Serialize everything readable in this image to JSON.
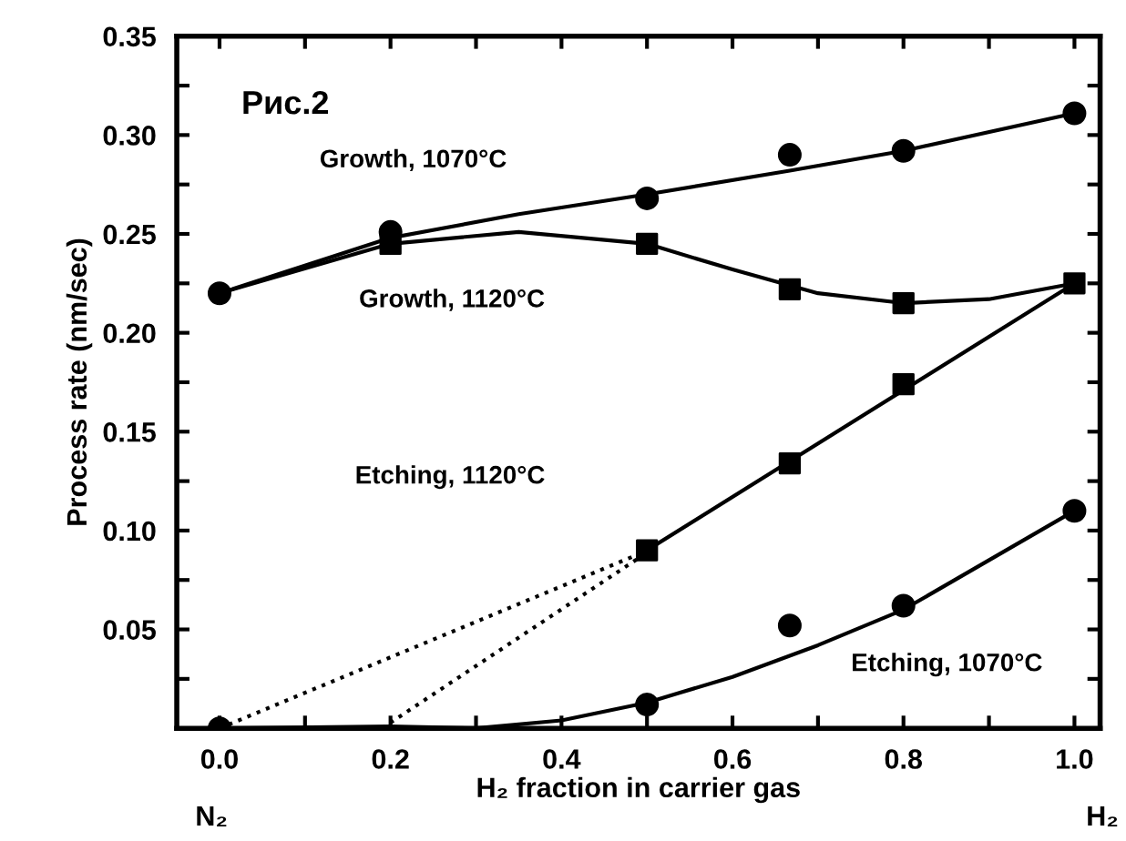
{
  "chart_data": {
    "type": "line",
    "xlabel": "H₂ fraction in carrier gas",
    "ylabel": "Process rate (nm/sec)",
    "xlim": [
      -0.05,
      1.03
    ],
    "ylim": [
      0,
      0.35
    ],
    "xticks": [
      {
        "value": 0.0,
        "label": "0.0"
      },
      {
        "value": 0.1,
        "label": null
      },
      {
        "value": 0.2,
        "label": "0.2"
      },
      {
        "value": 0.3,
        "label": null
      },
      {
        "value": 0.4,
        "label": "0.4"
      },
      {
        "value": 0.5,
        "label": null
      },
      {
        "value": 0.6,
        "label": "0.6"
      },
      {
        "value": 0.7,
        "label": null
      },
      {
        "value": 0.8,
        "label": "0.8"
      },
      {
        "value": 0.9,
        "label": null
      },
      {
        "value": 1.0,
        "label": "1.0"
      }
    ],
    "yticks": [
      {
        "value": 0.025,
        "label": null
      },
      0.05,
      {
        "value": 0.075,
        "label": null
      },
      {
        "value": 0.1,
        "label": "0.10"
      },
      {
        "value": 0.125,
        "label": null
      },
      0.15,
      {
        "value": 0.175,
        "label": null
      },
      {
        "value": 0.2,
        "label": "0.20"
      },
      {
        "value": 0.225,
        "label": null
      },
      0.25,
      {
        "value": 0.275,
        "label": null
      },
      {
        "value": 0.3,
        "label": "0.30"
      },
      {
        "value": 0.325,
        "label": null
      },
      0.35
    ],
    "grid": false,
    "legend": false,
    "series": [
      {
        "type": "scatter",
        "marker": "circle",
        "color": "#000000",
        "x": [
          0,
          0.2,
          0.5,
          0.667,
          0.8,
          1.0
        ],
        "values": [
          0.22,
          0.251,
          0.268,
          0.29,
          0.292,
          0.311
        ]
      },
      {
        "line_style": "solid",
        "color": "#000000",
        "x": [
          0,
          0.2,
          0.35,
          0.5,
          0.667,
          0.8,
          1.0
        ],
        "values": [
          0.22,
          0.248,
          0.26,
          0.27,
          0.282,
          0.292,
          0.311
        ]
      },
      {
        "type": "scatter",
        "marker": "square",
        "color": "#000000",
        "x": [
          0.2,
          0.5,
          0.667,
          0.8
        ],
        "values": [
          0.245,
          0.245,
          0.222,
          0.215
        ]
      },
      {
        "line_style": "solid",
        "color": "#000000",
        "x": [
          0,
          0.2,
          0.35,
          0.5,
          0.6,
          0.7,
          0.8,
          0.9,
          1.0
        ],
        "values": [
          0.22,
          0.245,
          0.251,
          0.245,
          0.232,
          0.22,
          0.215,
          0.217,
          0.225
        ]
      },
      {
        "type": "scatter",
        "marker": "square",
        "color": "#000000",
        "x": [
          0.5,
          0.667,
          0.8,
          1.0
        ],
        "values": [
          0.09,
          0.134,
          0.174,
          0.225
        ]
      },
      {
        "line_style": "solid",
        "color": "#000000",
        "x": [
          0.5,
          1.0
        ],
        "values": [
          0.09,
          0.225
        ]
      },
      {
        "line_style": "dotted",
        "color": "#000000",
        "x": [
          0,
          0.49
        ],
        "values": [
          0,
          0.088
        ]
      },
      {
        "line_style": "dotted",
        "color": "#000000",
        "x": [
          0.19,
          0.49
        ],
        "values": [
          0,
          0.086
        ]
      },
      {
        "type": "scatter",
        "marker": "circle",
        "color": "#000000",
        "x": [
          0,
          0.5,
          0.667,
          0.8,
          1.0
        ],
        "values": [
          0,
          0.012,
          0.052,
          0.062,
          0.11
        ]
      },
      {
        "line_style": "solid",
        "color": "#000000",
        "x": [
          0,
          0.2,
          0.3,
          0.4,
          0.5,
          0.6,
          0.7,
          0.8,
          1.0
        ],
        "values": [
          0,
          0.001,
          0,
          0.004,
          0.013,
          0.026,
          0.042,
          0.06,
          0.11
        ]
      }
    ],
    "annotations": [
      "Рис.2",
      "N₂",
      "H₂",
      "Growth, 1070°C",
      "Growth, 1120°C",
      "Etching, 1120°C",
      "Etching, 1070°C"
    ]
  }
}
